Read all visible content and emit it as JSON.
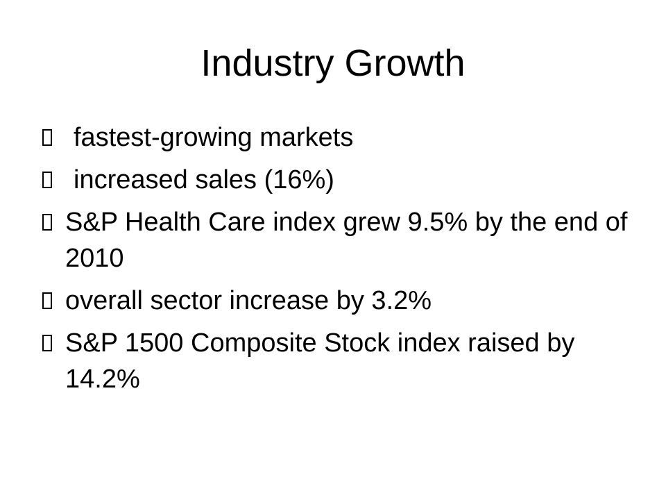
{
  "slide": {
    "title": "Industry Growth",
    "bullets": [
      {
        "text": "fastest-growing markets"
      },
      {
        "text": "increased sales (16%)"
      },
      {
        "text": "S&P Health Care index grew 9.5% by the end of 2010"
      },
      {
        "text": "overall sector increase by 3.2%"
      },
      {
        "text": "S&P 1500 Composite Stock index raised by 14.2%"
      }
    ]
  }
}
